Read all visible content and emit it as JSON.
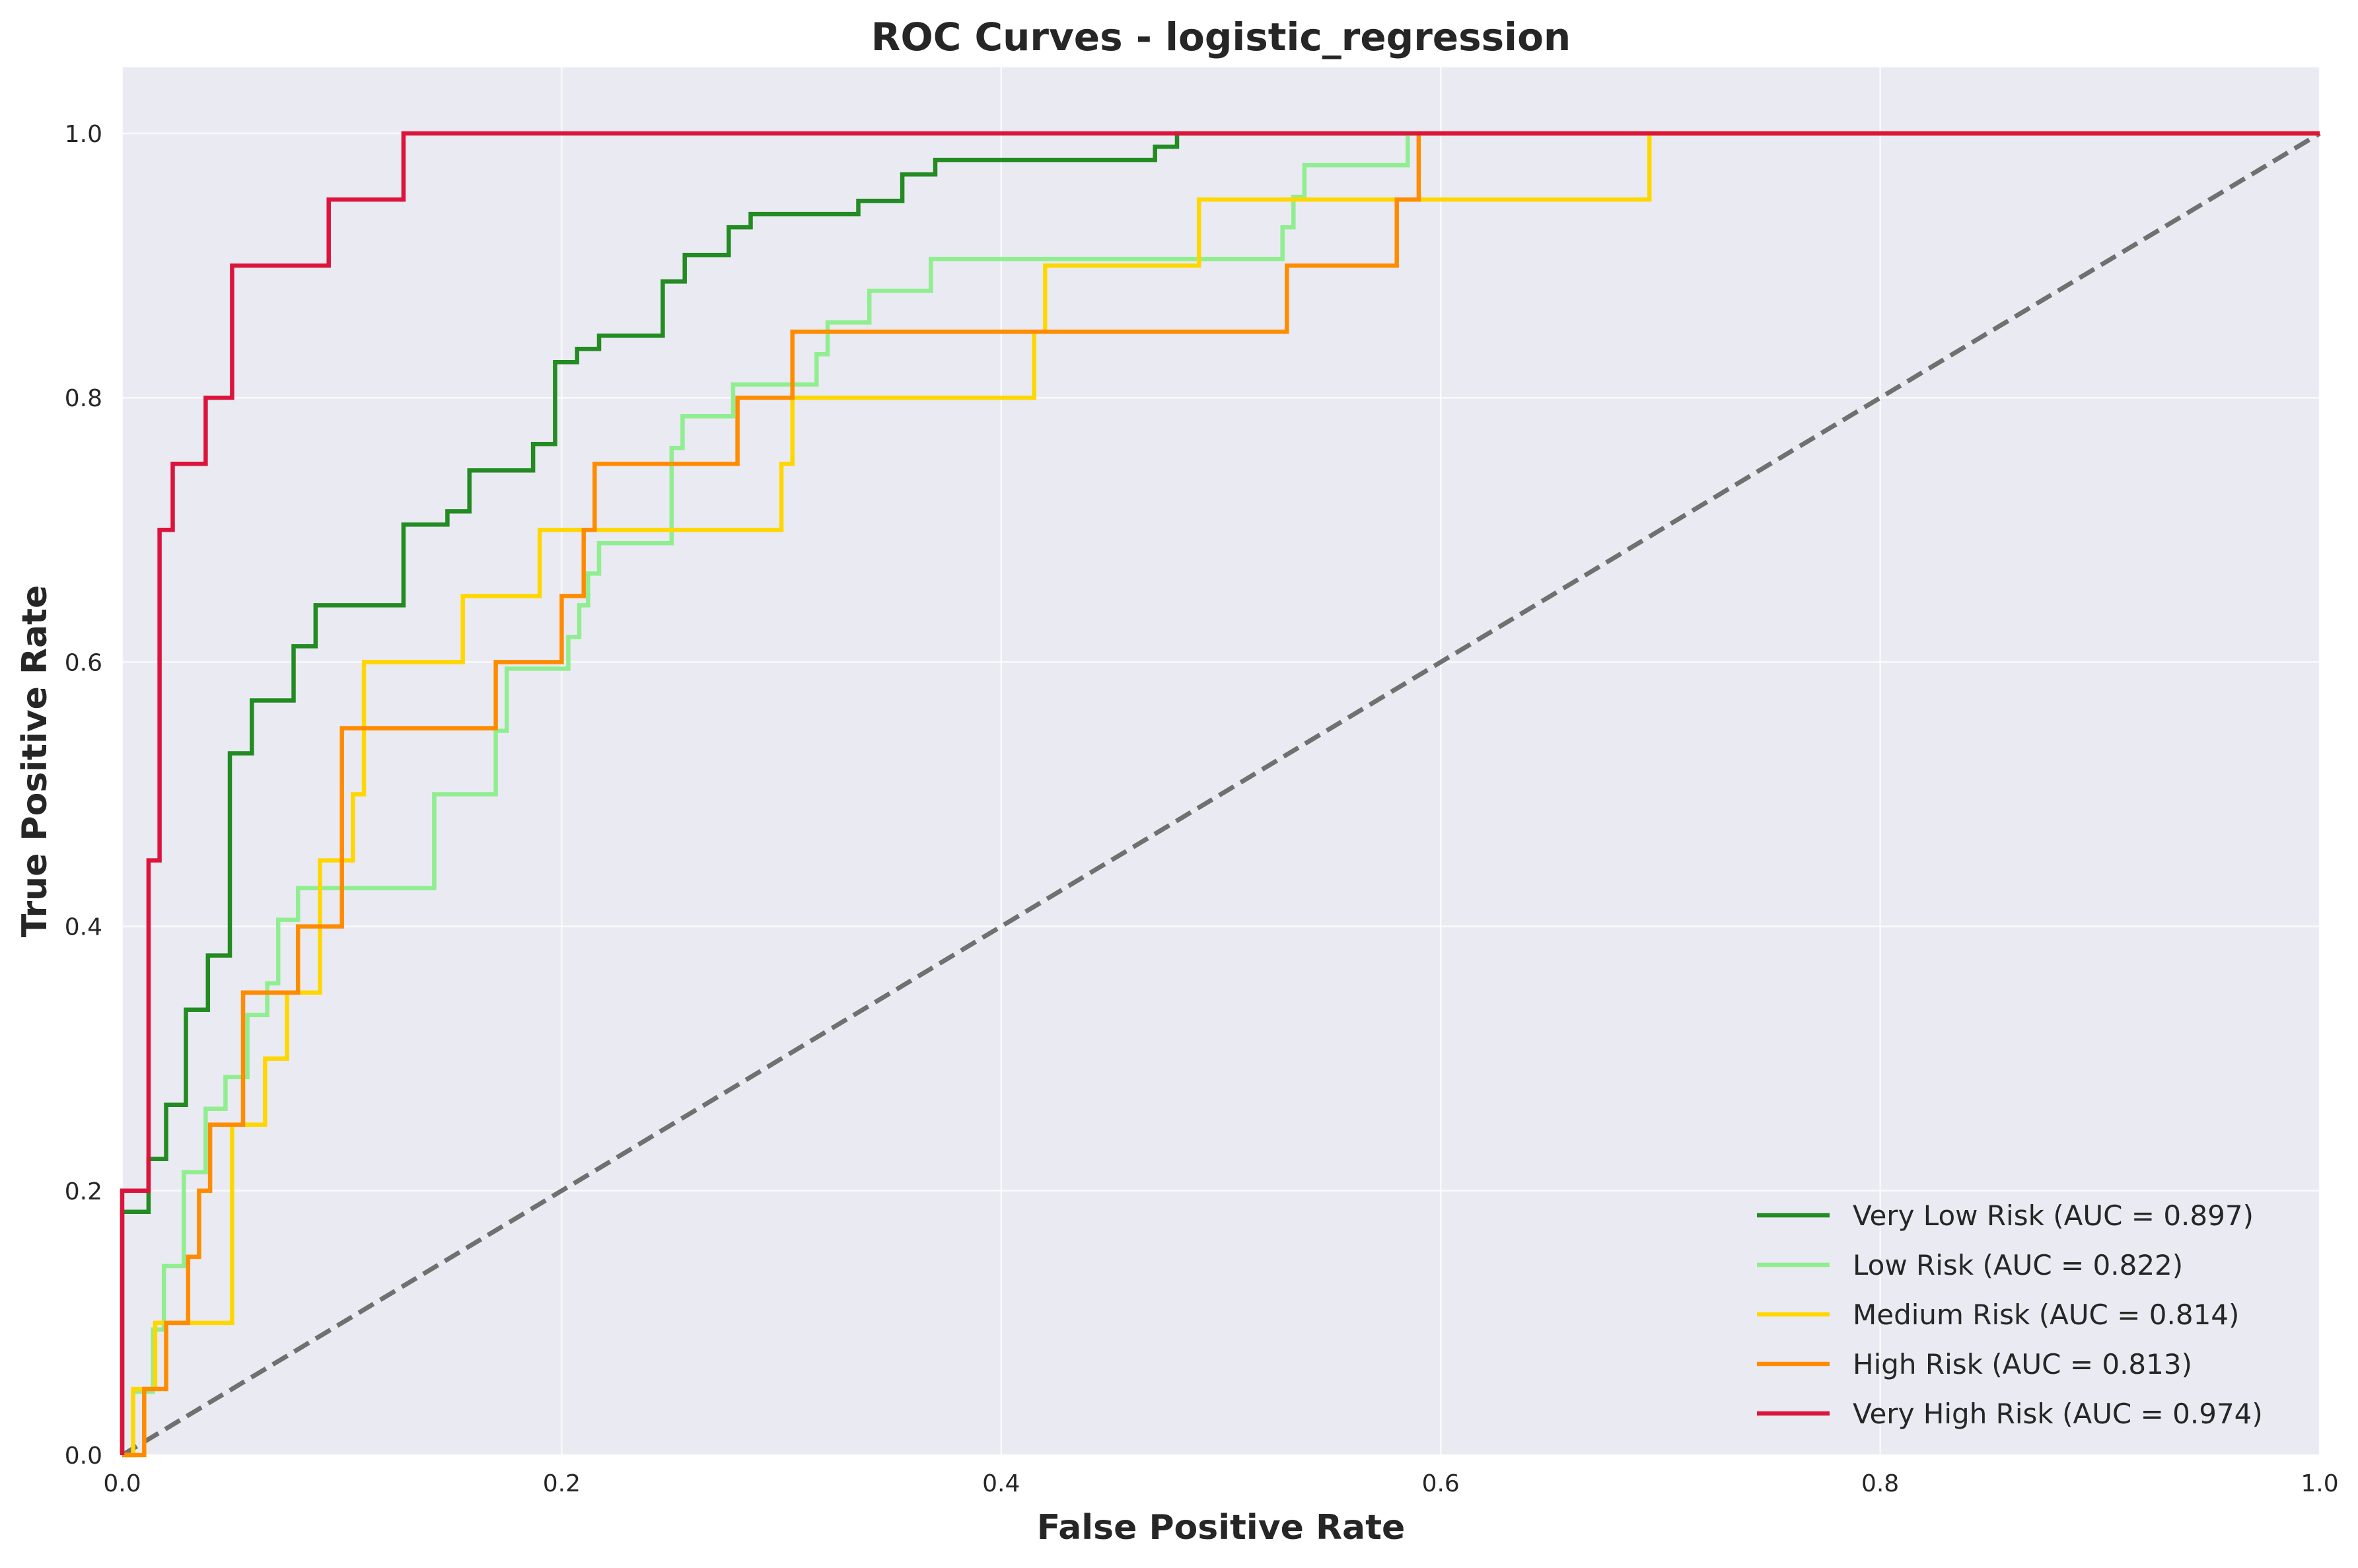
{
  "chart_data": {
    "type": "line",
    "title": "ROC Curves - logistic_regression",
    "xlabel": "False Positive Rate",
    "ylabel": "True Positive Rate",
    "xlim": [
      0,
      1
    ],
    "ylim": [
      0,
      1.05
    ],
    "xticks": [
      0.0,
      0.2,
      0.4,
      0.6,
      0.8,
      1.0
    ],
    "xtick_labels": [
      "0.0",
      "0.2",
      "0.4",
      "0.6",
      "0.8",
      "1.0"
    ],
    "yticks": [
      0.0,
      0.2,
      0.4,
      0.6,
      0.8,
      1.0
    ],
    "ytick_labels": [
      "0.0",
      "0.2",
      "0.4",
      "0.6",
      "0.8",
      "1.0"
    ],
    "grid": true,
    "legend_position": "bottom-right",
    "diagonal": {
      "x": [
        0,
        1
      ],
      "y": [
        0,
        1
      ],
      "color": "#707070",
      "style": "dashed"
    },
    "series": [
      {
        "name": "Very Low Risk (AUC = 0.897)",
        "color": "#228b22",
        "x": [
          0,
          0,
          0.012,
          0.012,
          0.02,
          0.02,
          0.029,
          0.029,
          0.039,
          0.039,
          0.049,
          0.049,
          0.059,
          0.059,
          0.078,
          0.078,
          0.088,
          0.088,
          0.128,
          0.128,
          0.148,
          0.148,
          0.158,
          0.158,
          0.187,
          0.187,
          0.197,
          0.197,
          0.207,
          0.207,
          0.217,
          0.217,
          0.246,
          0.246,
          0.256,
          0.256,
          0.276,
          0.276,
          0.286,
          0.286,
          0.335,
          0.335,
          0.355,
          0.355,
          0.37,
          0.37,
          0.47,
          0.47,
          0.48,
          0.48,
          1.0
        ],
        "y": [
          0,
          0.184,
          0.184,
          0.224,
          0.224,
          0.265,
          0.265,
          0.337,
          0.337,
          0.378,
          0.378,
          0.531,
          0.531,
          0.571,
          0.571,
          0.612,
          0.612,
          0.643,
          0.643,
          0.704,
          0.704,
          0.714,
          0.714,
          0.745,
          0.745,
          0.765,
          0.765,
          0.827,
          0.827,
          0.837,
          0.837,
          0.847,
          0.847,
          0.888,
          0.888,
          0.908,
          0.908,
          0.929,
          0.929,
          0.939,
          0.939,
          0.949,
          0.949,
          0.969,
          0.969,
          0.98,
          0.98,
          0.99,
          0.99,
          1.0,
          1.0
        ]
      },
      {
        "name": "Low Risk (AUC = 0.822)",
        "color": "#90ee90",
        "x": [
          0,
          0.005,
          0.005,
          0.014,
          0.014,
          0.019,
          0.019,
          0.028,
          0.028,
          0.038,
          0.038,
          0.047,
          0.047,
          0.057,
          0.057,
          0.066,
          0.066,
          0.071,
          0.071,
          0.08,
          0.08,
          0.085,
          0.085,
          0.142,
          0.142,
          0.17,
          0.17,
          0.175,
          0.175,
          0.203,
          0.203,
          0.208,
          0.208,
          0.212,
          0.212,
          0.217,
          0.217,
          0.222,
          0.222,
          0.25,
          0.25,
          0.255,
          0.255,
          0.278,
          0.278,
          0.316,
          0.316,
          0.321,
          0.321,
          0.34,
          0.34,
          0.368,
          0.368,
          0.528,
          0.528,
          0.533,
          0.533,
          0.538,
          0.538,
          0.585,
          0.585,
          1.0
        ],
        "y": [
          0,
          0,
          0.048,
          0.048,
          0.095,
          0.095,
          0.143,
          0.143,
          0.214,
          0.214,
          0.262,
          0.262,
          0.286,
          0.286,
          0.333,
          0.333,
          0.357,
          0.357,
          0.405,
          0.405,
          0.429,
          0.429,
          0.429,
          0.429,
          0.5,
          0.5,
          0.548,
          0.548,
          0.595,
          0.595,
          0.619,
          0.619,
          0.643,
          0.643,
          0.667,
          0.667,
          0.69,
          0.69,
          0.69,
          0.69,
          0.762,
          0.762,
          0.786,
          0.786,
          0.81,
          0.81,
          0.833,
          0.833,
          0.857,
          0.857,
          0.881,
          0.881,
          0.905,
          0.905,
          0.929,
          0.929,
          0.952,
          0.952,
          0.976,
          0.976,
          1.0,
          1.0
        ]
      },
      {
        "name": "Medium Risk (AUC = 0.814)",
        "color": "#ffd700",
        "x": [
          0,
          0.005,
          0.005,
          0.015,
          0.015,
          0.05,
          0.05,
          0.065,
          0.065,
          0.075,
          0.075,
          0.09,
          0.09,
          0.105,
          0.105,
          0.11,
          0.11,
          0.155,
          0.155,
          0.19,
          0.19,
          0.3,
          0.3,
          0.305,
          0.305,
          0.415,
          0.415,
          0.42,
          0.42,
          0.49,
          0.49,
          0.695,
          0.695,
          1.0
        ],
        "y": [
          0,
          0,
          0.05,
          0.05,
          0.1,
          0.1,
          0.25,
          0.25,
          0.3,
          0.3,
          0.35,
          0.35,
          0.45,
          0.45,
          0.5,
          0.5,
          0.6,
          0.6,
          0.65,
          0.65,
          0.7,
          0.7,
          0.75,
          0.75,
          0.8,
          0.8,
          0.85,
          0.85,
          0.9,
          0.9,
          0.95,
          0.95,
          1.0,
          1.0
        ]
      },
      {
        "name": "High Risk (AUC = 0.813)",
        "color": "#ff8c00",
        "x": [
          0,
          0.01,
          0.01,
          0.02,
          0.02,
          0.03,
          0.03,
          0.035,
          0.035,
          0.04,
          0.04,
          0.055,
          0.055,
          0.08,
          0.08,
          0.1,
          0.1,
          0.17,
          0.17,
          0.2,
          0.2,
          0.21,
          0.21,
          0.215,
          0.215,
          0.24,
          0.24,
          0.28,
          0.28,
          0.305,
          0.305,
          0.53,
          0.53,
          0.58,
          0.58,
          0.59,
          0.59,
          1.0
        ],
        "y": [
          0,
          0,
          0.05,
          0.05,
          0.1,
          0.1,
          0.15,
          0.15,
          0.2,
          0.2,
          0.25,
          0.25,
          0.35,
          0.35,
          0.4,
          0.4,
          0.55,
          0.55,
          0.6,
          0.6,
          0.65,
          0.65,
          0.7,
          0.7,
          0.75,
          0.75,
          0.75,
          0.75,
          0.8,
          0.8,
          0.85,
          0.85,
          0.9,
          0.9,
          0.95,
          0.95,
          1.0,
          1.0
        ]
      },
      {
        "name": "Very High Risk (AUC = 0.974)",
        "color": "#dc143c",
        "x": [
          0,
          0,
          0.012,
          0.012,
          0.017,
          0.017,
          0.023,
          0.023,
          0.038,
          0.038,
          0.05,
          0.05,
          0.094,
          0.094,
          0.128,
          0.128,
          1.0
        ],
        "y": [
          0,
          0.2,
          0.2,
          0.45,
          0.45,
          0.7,
          0.7,
          0.75,
          0.75,
          0.8,
          0.8,
          0.9,
          0.9,
          0.95,
          0.95,
          1.0,
          1.0
        ]
      }
    ]
  }
}
